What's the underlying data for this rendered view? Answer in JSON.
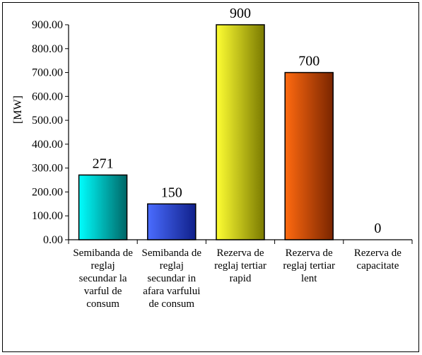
{
  "chart_data": {
    "type": "bar",
    "ylabel": "[MW]",
    "ylim": [
      0,
      900
    ],
    "yticks": [
      "0.00",
      "100.00",
      "200.00",
      "300.00",
      "400.00",
      "500.00",
      "600.00",
      "700.00",
      "800.00",
      "900.00"
    ],
    "categories": [
      [
        "Semibanda de",
        "reglaj",
        "secundar la",
        "varful de",
        "consum"
      ],
      [
        "Semibanda de",
        "reglaj",
        "secundar in",
        "afara varfului",
        "de consum"
      ],
      [
        "Rezerva de",
        "reglaj tertiar",
        "rapid"
      ],
      [
        "Rezerva de",
        "reglaj tertiar",
        "lent"
      ],
      [
        "Rezerva de",
        "capacitate"
      ]
    ],
    "values": [
      271,
      150,
      900,
      700,
      0
    ],
    "data_labels": [
      "271",
      "150",
      "900",
      "700",
      "0"
    ],
    "colors": [
      [
        "#00ffff",
        "#006666"
      ],
      [
        "#4a6cff",
        "#10208a"
      ],
      [
        "#ffff33",
        "#7a7a00"
      ],
      [
        "#ff6a10",
        "#7a2500"
      ],
      [
        "#cccccc",
        "#666666"
      ]
    ],
    "grid": false,
    "legend": "none"
  }
}
